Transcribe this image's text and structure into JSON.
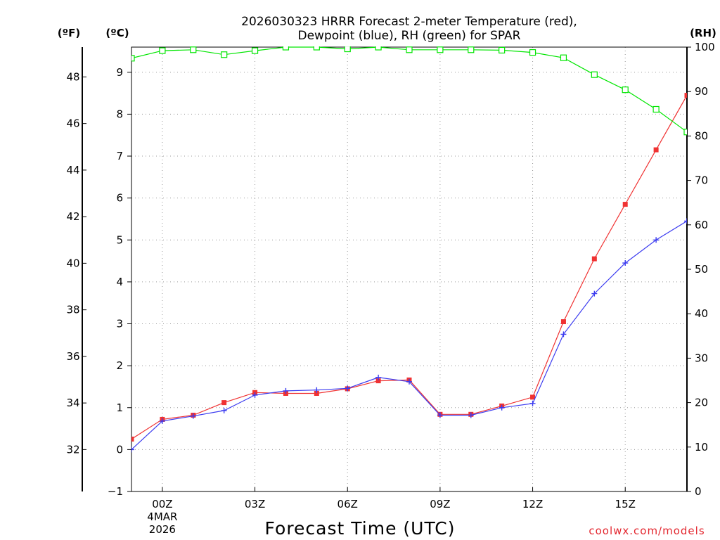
{
  "chart_data": {
    "type": "line",
    "title_line1": "2026030323 HRRR Forecast 2-meter Temperature (red),",
    "title_line2": "Dewpoint (blue), RH (green) for SPAR",
    "xlabel": "Forecast Time (UTC)",
    "credit": "coolwx.com/models",
    "left_unit_f": "(ºF)",
    "left_unit_c": "(ºC)",
    "right_unit": "(RH)",
    "celsius_range": [
      -1,
      9.6
    ],
    "rh_range": [
      0,
      100
    ],
    "celsius_ticks": [
      "-1",
      "0",
      "1",
      "2",
      "3",
      "4",
      "5",
      "6",
      "7",
      "8",
      "9"
    ],
    "fahrenheit_ticks": [
      "32",
      "34",
      "36",
      "38",
      "40",
      "42",
      "44",
      "46",
      "48"
    ],
    "rh_ticks": [
      "0",
      "10",
      "20",
      "30",
      "40",
      "50",
      "60",
      "70",
      "80",
      "90",
      "100"
    ],
    "x_hours": [
      -1,
      0,
      1,
      2,
      3,
      4,
      5,
      6,
      7,
      8,
      9,
      10,
      11,
      12,
      13,
      14,
      15,
      16,
      17
    ],
    "x_range": [
      -1,
      17
    ],
    "x_ticks": [
      {
        "hour": 0,
        "label": "00Z",
        "sub1": "4MAR",
        "sub2": "2026"
      },
      {
        "hour": 3,
        "label": "03Z"
      },
      {
        "hour": 6,
        "label": "06Z"
      },
      {
        "hour": 9,
        "label": "09Z"
      },
      {
        "hour": 12,
        "label": "12Z"
      },
      {
        "hour": 15,
        "label": "15Z"
      }
    ],
    "series": [
      {
        "name": "Temperature",
        "unit": "C",
        "color": "#f03232",
        "marker": "filled-square",
        "values": [
          0.25,
          0.72,
          0.82,
          1.12,
          1.36,
          1.34,
          1.34,
          1.45,
          1.64,
          1.66,
          0.84,
          0.84,
          1.04,
          1.25,
          3.05,
          4.55,
          5.85,
          7.15,
          8.45
        ]
      },
      {
        "name": "Dewpoint",
        "unit": "C",
        "color": "#3c3cf0",
        "marker": "plus",
        "values": [
          0.0,
          0.68,
          0.8,
          0.93,
          1.3,
          1.4,
          1.42,
          1.46,
          1.72,
          1.62,
          0.82,
          0.82,
          1.0,
          1.1,
          2.75,
          3.72,
          4.45,
          5.0,
          5.45
        ]
      },
      {
        "name": "RH",
        "unit": "%",
        "color": "#00e600",
        "marker": "open-square",
        "values": [
          97.5,
          99.2,
          99.4,
          98.3,
          99.2,
          100.0,
          100.0,
          99.6,
          100.0,
          99.4,
          99.4,
          99.4,
          99.3,
          98.8,
          97.6,
          93.8,
          90.4,
          86.0,
          80.9
        ]
      }
    ]
  }
}
